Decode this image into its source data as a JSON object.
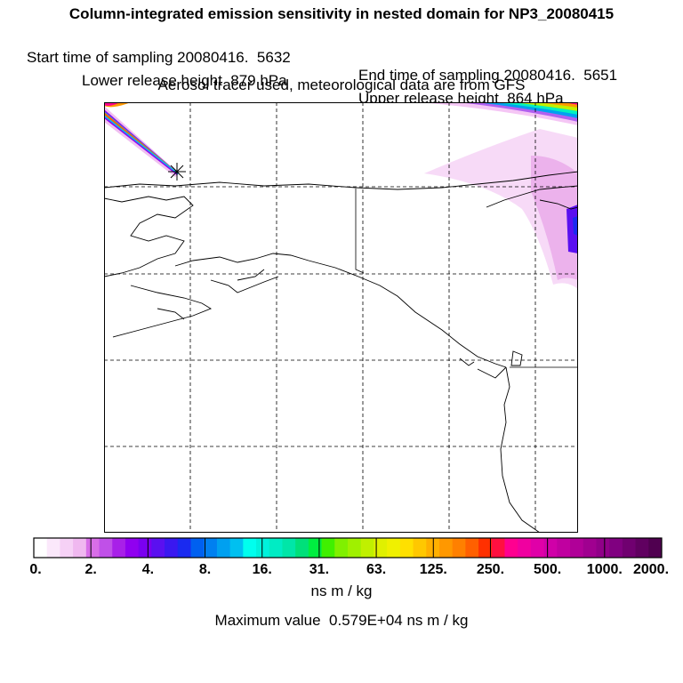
{
  "header": {
    "title": "Column-integrated emission sensitivity in nested domain for NP3_20080415",
    "start_label": "Start time of sampling 20080416.  5632",
    "end_label": "End time of sampling 20080416.  5651",
    "lower_label": "Lower release height  879 hPa",
    "upper_label": "Upper release height  864 hPa",
    "tracer_line": "Aerosol tracer used, meteorological data are from GFS"
  },
  "map": {
    "grid_vertical_count": 5,
    "grid_horizontal_count": 4,
    "release_marker": "asterisk"
  },
  "legend": {
    "tick_labels": [
      "0.",
      "2.",
      "4.",
      "8.",
      "16.",
      "31.",
      "63.",
      "125.",
      "250.",
      "500.",
      "1000.",
      "2000."
    ],
    "colors": [
      "#ffffff",
      "#fbe8fb",
      "#f6d1f6",
      "#f0b8f0",
      "#d86ee8",
      "#c050e8",
      "#a820e8",
      "#9000f0",
      "#7a00f0",
      "#5a10f0",
      "#3a18f0",
      "#1a2af0",
      "#0060f0",
      "#0080f0",
      "#00a0f0",
      "#00c0f0",
      "#00ffee",
      "#00f2dc",
      "#00ecc4",
      "#00e6a8",
      "#00e07a",
      "#00ee40",
      "#40f000",
      "#80f000",
      "#a0f000",
      "#c0f000",
      "#e0f000",
      "#f0f000",
      "#ffe000",
      "#ffc800",
      "#ffb000",
      "#ff9800",
      "#ff8000",
      "#ff6000",
      "#ff3000",
      "#ff1040",
      "#ff0090",
      "#f000a0",
      "#e000a8",
      "#d000a8",
      "#c000a0",
      "#b00098",
      "#a00090",
      "#900088",
      "#800080",
      "#700070",
      "#600060",
      "#500050"
    ],
    "units": "ns m / kg",
    "max_value_text": "Maximum value  0.579E+04 ns m / kg"
  }
}
